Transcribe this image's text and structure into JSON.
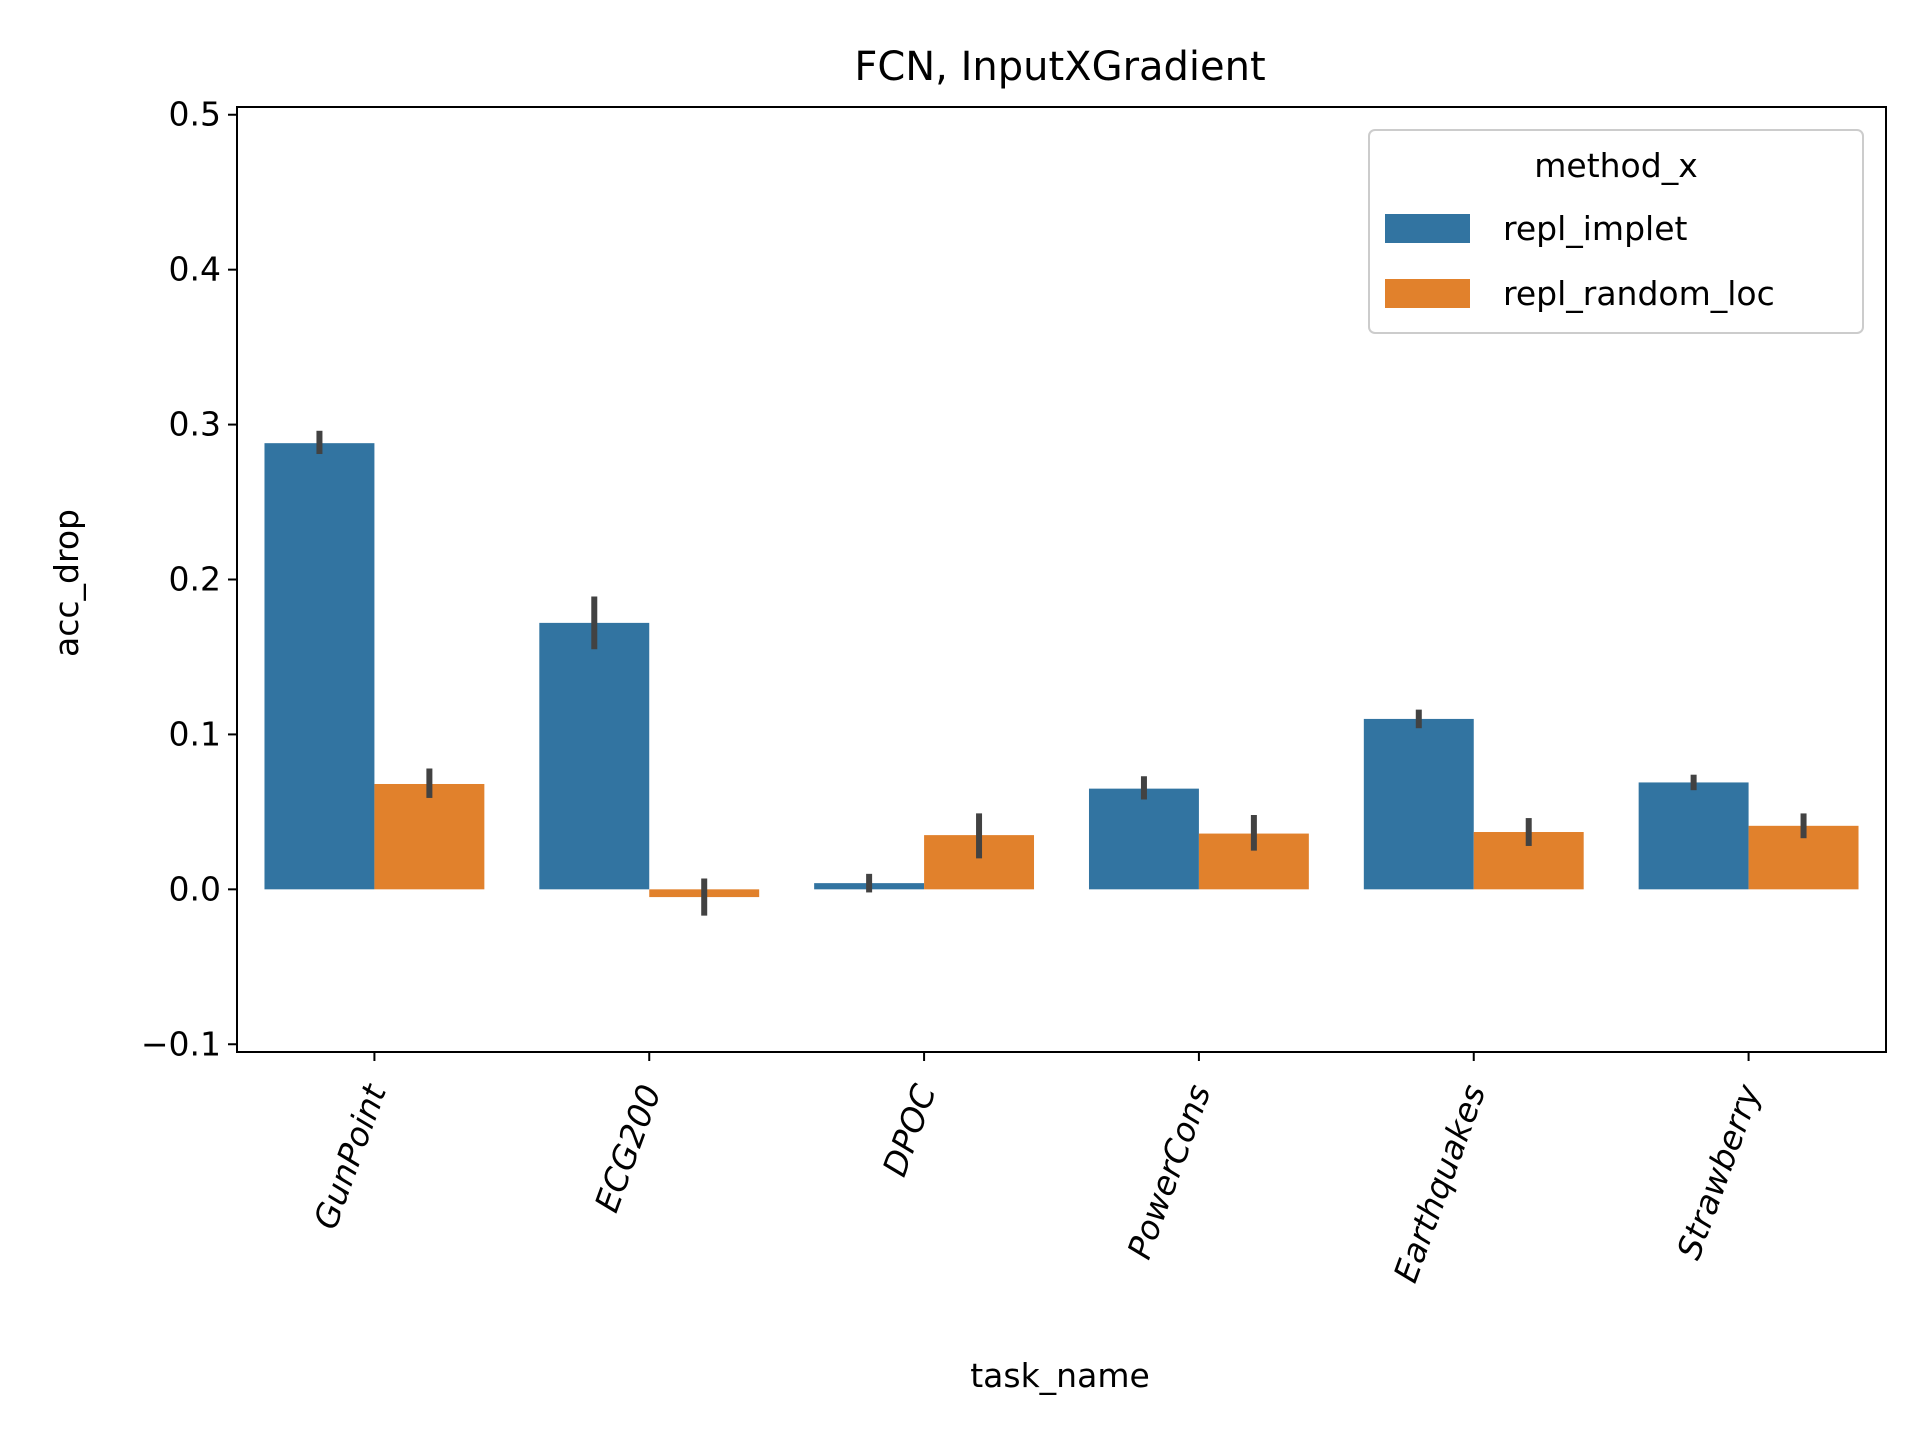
{
  "chart_data": {
    "type": "bar",
    "title": "FCN, InputXGradient",
    "xlabel": "task_name",
    "ylabel": "acc_drop",
    "ylim": [
      -0.105,
      0.505
    ],
    "yticks": [
      -0.1,
      0.0,
      0.1,
      0.2,
      0.3,
      0.4,
      0.5
    ],
    "ytick_labels": [
      "−0.1",
      "0.0",
      "0.1",
      "0.2",
      "0.3",
      "0.4",
      "0.5"
    ],
    "grid": false,
    "categories": [
      "GunPoint",
      "ECG200",
      "DPOC",
      "PowerCons",
      "Earthquakes",
      "Strawberry"
    ],
    "series": [
      {
        "name": "repl_implet",
        "color": "#3274a1",
        "values": [
          0.288,
          0.172,
          0.004,
          0.065,
          0.11,
          0.069
        ],
        "error_low": [
          0.281,
          0.155,
          -0.002,
          0.058,
          0.104,
          0.064
        ],
        "error_high": [
          0.296,
          0.189,
          0.01,
          0.073,
          0.116,
          0.074
        ]
      },
      {
        "name": "repl_random_loc",
        "color": "#e1812c",
        "values": [
          0.068,
          -0.005,
          0.035,
          0.036,
          0.037,
          0.041
        ],
        "error_low": [
          0.059,
          -0.017,
          0.02,
          0.025,
          0.028,
          0.033
        ],
        "error_high": [
          0.078,
          0.007,
          0.049,
          0.048,
          0.046,
          0.049
        ]
      }
    ],
    "legend": {
      "title": "method_x",
      "placement": "upper right"
    }
  }
}
